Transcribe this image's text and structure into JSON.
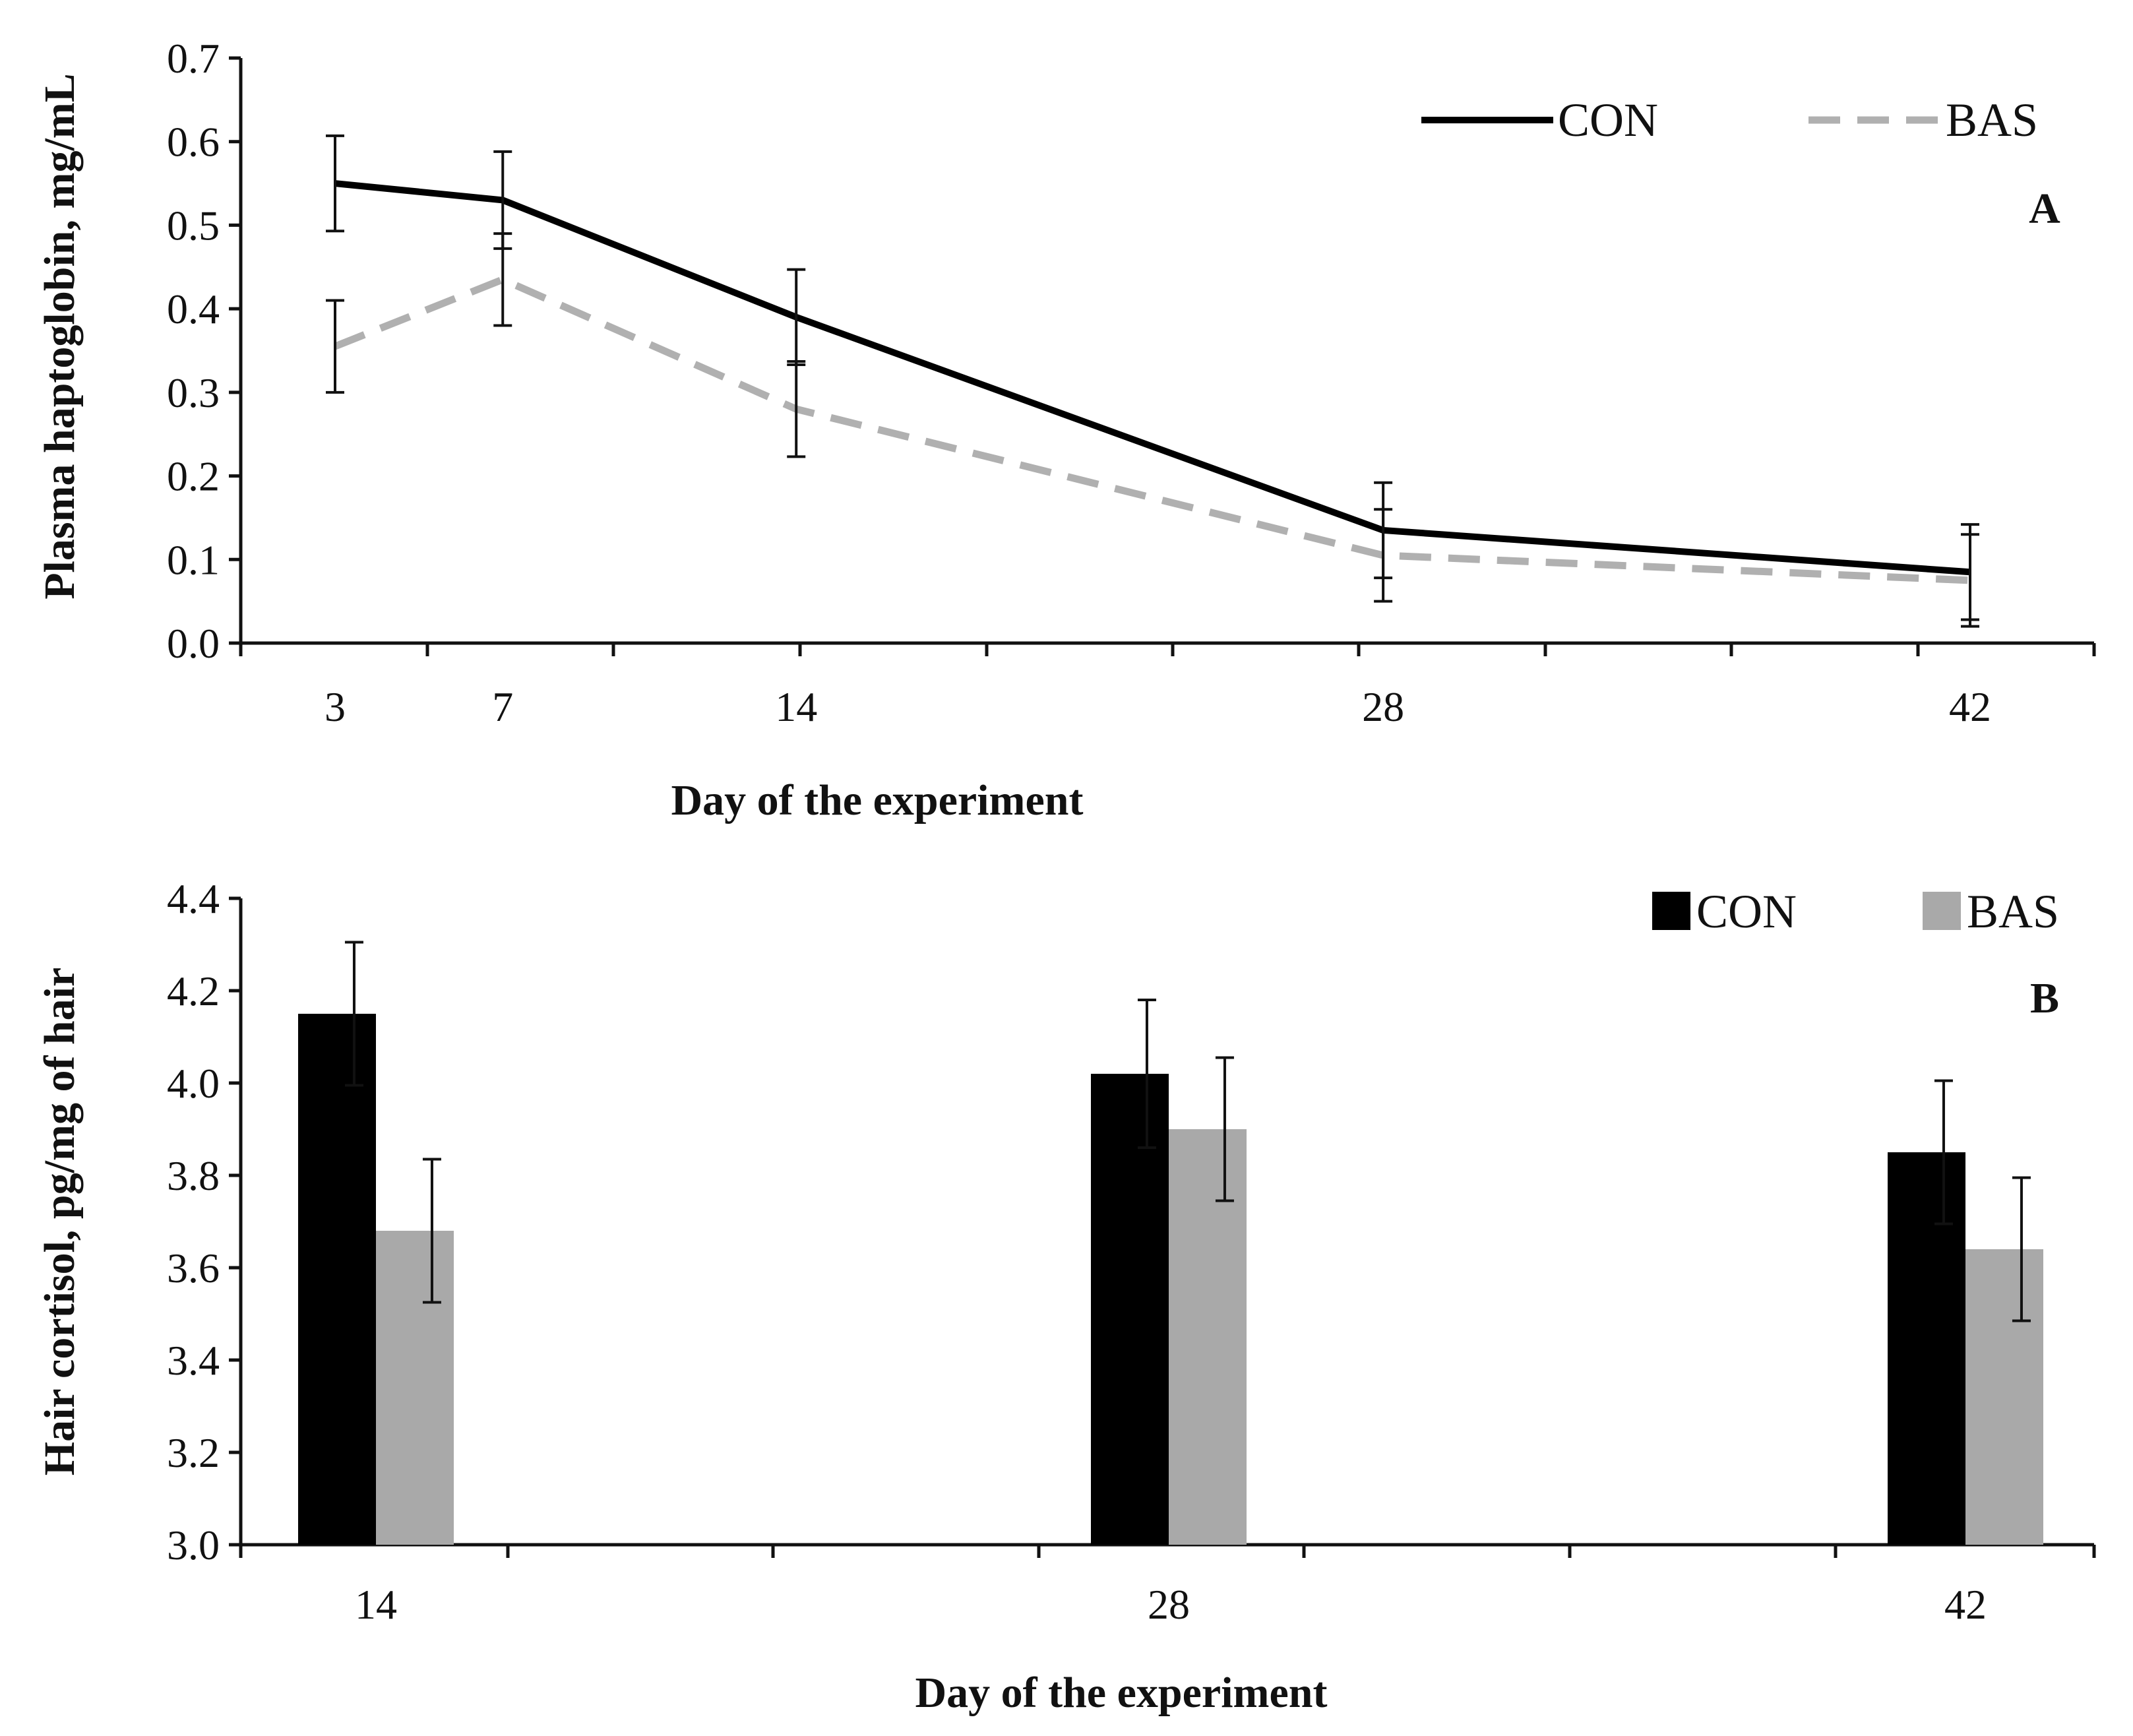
{
  "chart_data": [
    {
      "type": "line",
      "panel_label": "A",
      "xlabel": "Day of the experiment",
      "ylabel": "Plasma haptoglobin, mg/mL",
      "ylim": [
        0.0,
        0.7
      ],
      "y_ticks": [
        "0.0",
        "0.1",
        "0.2",
        "0.3",
        "0.4",
        "0.5",
        "0.6",
        "0.7"
      ],
      "x": [
        3,
        7,
        14,
        28,
        42
      ],
      "x_tick_labels": [
        "3",
        "7",
        "14",
        "28",
        "42"
      ],
      "grid": false,
      "legend_position": "top-right",
      "series": [
        {
          "name": "CON",
          "style": "solid",
          "color": "#000000",
          "values": [
            0.55,
            0.53,
            0.39,
            0.135,
            0.085
          ],
          "errors": [
            0.057,
            0.058,
            0.057,
            0.057,
            0.057
          ]
        },
        {
          "name": "BAS",
          "style": "dashed",
          "color": "#b0b0b0",
          "values": [
            0.355,
            0.435,
            0.28,
            0.105,
            0.075
          ],
          "errors": [
            0.055,
            0.055,
            0.057,
            0.055,
            0.055
          ]
        }
      ]
    },
    {
      "type": "bar",
      "panel_label": "B",
      "xlabel": "Day of the experiment",
      "ylabel": "Hair cortisol, pg/mg of hair",
      "ylim": [
        3.0,
        4.4
      ],
      "y_ticks": [
        "3.0",
        "3.2",
        "3.4",
        "3.6",
        "3.8",
        "4.0",
        "4.2",
        "4.4"
      ],
      "categories": [
        "14",
        "28",
        "42"
      ],
      "grid": false,
      "legend_position": "top-right",
      "series": [
        {
          "name": "CON",
          "color": "#000000",
          "values": [
            4.15,
            4.02,
            3.85
          ],
          "errors": [
            0.155,
            0.16,
            0.155
          ]
        },
        {
          "name": "BAS",
          "color": "#a9a9a9",
          "values": [
            3.68,
            3.9,
            3.64
          ],
          "errors": [
            0.155,
            0.155,
            0.155
          ]
        }
      ]
    }
  ]
}
